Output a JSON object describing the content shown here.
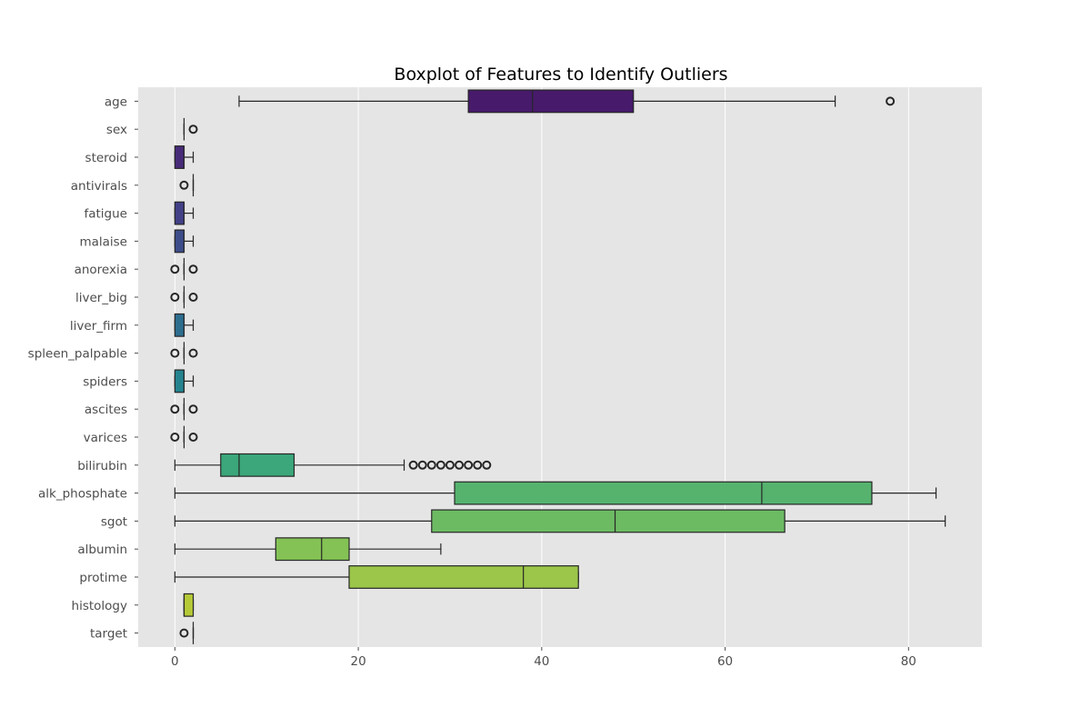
{
  "chart_data": {
    "type": "boxplot",
    "orientation": "horizontal",
    "title": "Boxplot of Features to Identify Outliers",
    "xlabel": "",
    "ylabel": "",
    "xlim": [
      -4,
      88
    ],
    "xticks": [
      0,
      20,
      40,
      60,
      80
    ],
    "grid": true,
    "colors": {
      "plot_background": "#e5e5e5",
      "grid": "#ffffff",
      "edge": "#262626",
      "tick_label": "#4d4d4d"
    },
    "features": [
      {
        "name": "age",
        "color": "#471a6b",
        "whisker_low": 7,
        "q1": 32,
        "median": 39,
        "q3": 50,
        "whisker_high": 72,
        "outliers": [
          78
        ]
      },
      {
        "name": "sex",
        "color": "#481f70",
        "whisker_low": 1,
        "q1": 1,
        "median": 1,
        "q3": 1,
        "whisker_high": 1,
        "outliers": [
          2
        ]
      },
      {
        "name": "steroid",
        "color": "#472b79",
        "whisker_low": 0,
        "q1": 0,
        "median": 1,
        "q3": 1,
        "whisker_high": 2,
        "outliers": []
      },
      {
        "name": "antivirals",
        "color": "#453681",
        "whisker_low": 2,
        "q1": 2,
        "median": 2,
        "q3": 2,
        "whisker_high": 2,
        "outliers": [
          1
        ]
      },
      {
        "name": "fatigue",
        "color": "#424086",
        "whisker_low": 0,
        "q1": 0,
        "median": 1,
        "q3": 1,
        "whisker_high": 2,
        "outliers": []
      },
      {
        "name": "malaise",
        "color": "#3c4d8a",
        "whisker_low": 0,
        "q1": 0,
        "median": 1,
        "q3": 1,
        "whisker_high": 2,
        "outliers": []
      },
      {
        "name": "anorexia",
        "color": "#37588c",
        "whisker_low": 1,
        "q1": 1,
        "median": 1,
        "q3": 1,
        "whisker_high": 1,
        "outliers": [
          0,
          2
        ]
      },
      {
        "name": "liver_big",
        "color": "#32638d",
        "whisker_low": 1,
        "q1": 1,
        "median": 1,
        "q3": 1,
        "whisker_high": 1,
        "outliers": [
          0,
          2
        ]
      },
      {
        "name": "liver_firm",
        "color": "#2d6e8e",
        "whisker_low": 0,
        "q1": 0,
        "median": 1,
        "q3": 1,
        "whisker_high": 2,
        "outliers": []
      },
      {
        "name": "spleen_palpable",
        "color": "#29788e",
        "whisker_low": 1,
        "q1": 1,
        "median": 1,
        "q3": 1,
        "whisker_high": 1,
        "outliers": [
          0,
          2
        ]
      },
      {
        "name": "spiders",
        "color": "#25838e",
        "whisker_low": 0,
        "q1": 0,
        "median": 1,
        "q3": 1,
        "whisker_high": 2,
        "outliers": []
      },
      {
        "name": "ascites",
        "color": "#218d8c",
        "whisker_low": 1,
        "q1": 1,
        "median": 1,
        "q3": 1,
        "whisker_high": 1,
        "outliers": [
          0,
          2
        ]
      },
      {
        "name": "varices",
        "color": "#1f978b",
        "whisker_low": 1,
        "q1": 1,
        "median": 1,
        "q3": 1,
        "whisker_high": 1,
        "outliers": [
          0,
          2
        ]
      },
      {
        "name": "bilirubin",
        "color": "#3ba77a",
        "whisker_low": 0,
        "q1": 5,
        "median": 7,
        "q3": 13,
        "whisker_high": 25,
        "outliers": [
          26,
          27,
          28,
          29,
          30,
          31,
          32,
          33,
          34
        ]
      },
      {
        "name": "alk_phosphate",
        "color": "#55b36e",
        "whisker_low": 0,
        "q1": 30.5,
        "median": 64,
        "q3": 76,
        "whisker_high": 83,
        "outliers": []
      },
      {
        "name": "sgot",
        "color": "#6cbb63",
        "whisker_low": 0,
        "q1": 28,
        "median": 48,
        "q3": 66.5,
        "whisker_high": 84,
        "outliers": []
      },
      {
        "name": "albumin",
        "color": "#84c255",
        "whisker_low": 0,
        "q1": 11,
        "median": 16,
        "q3": 19,
        "whisker_high": 29,
        "outliers": []
      },
      {
        "name": "protime",
        "color": "#9bc64a",
        "whisker_low": 0,
        "q1": 19,
        "median": 38,
        "q3": 44,
        "whisker_high": 44,
        "outliers": []
      },
      {
        "name": "histology",
        "color": "#b5c937",
        "whisker_low": 1,
        "q1": 1,
        "median": 1,
        "q3": 2,
        "whisker_high": 2,
        "outliers": []
      },
      {
        "name": "target",
        "color": "#c9cb2b",
        "whisker_low": 2,
        "q1": 2,
        "median": 2,
        "q3": 2,
        "whisker_high": 2,
        "outliers": [
          1
        ]
      }
    ]
  }
}
